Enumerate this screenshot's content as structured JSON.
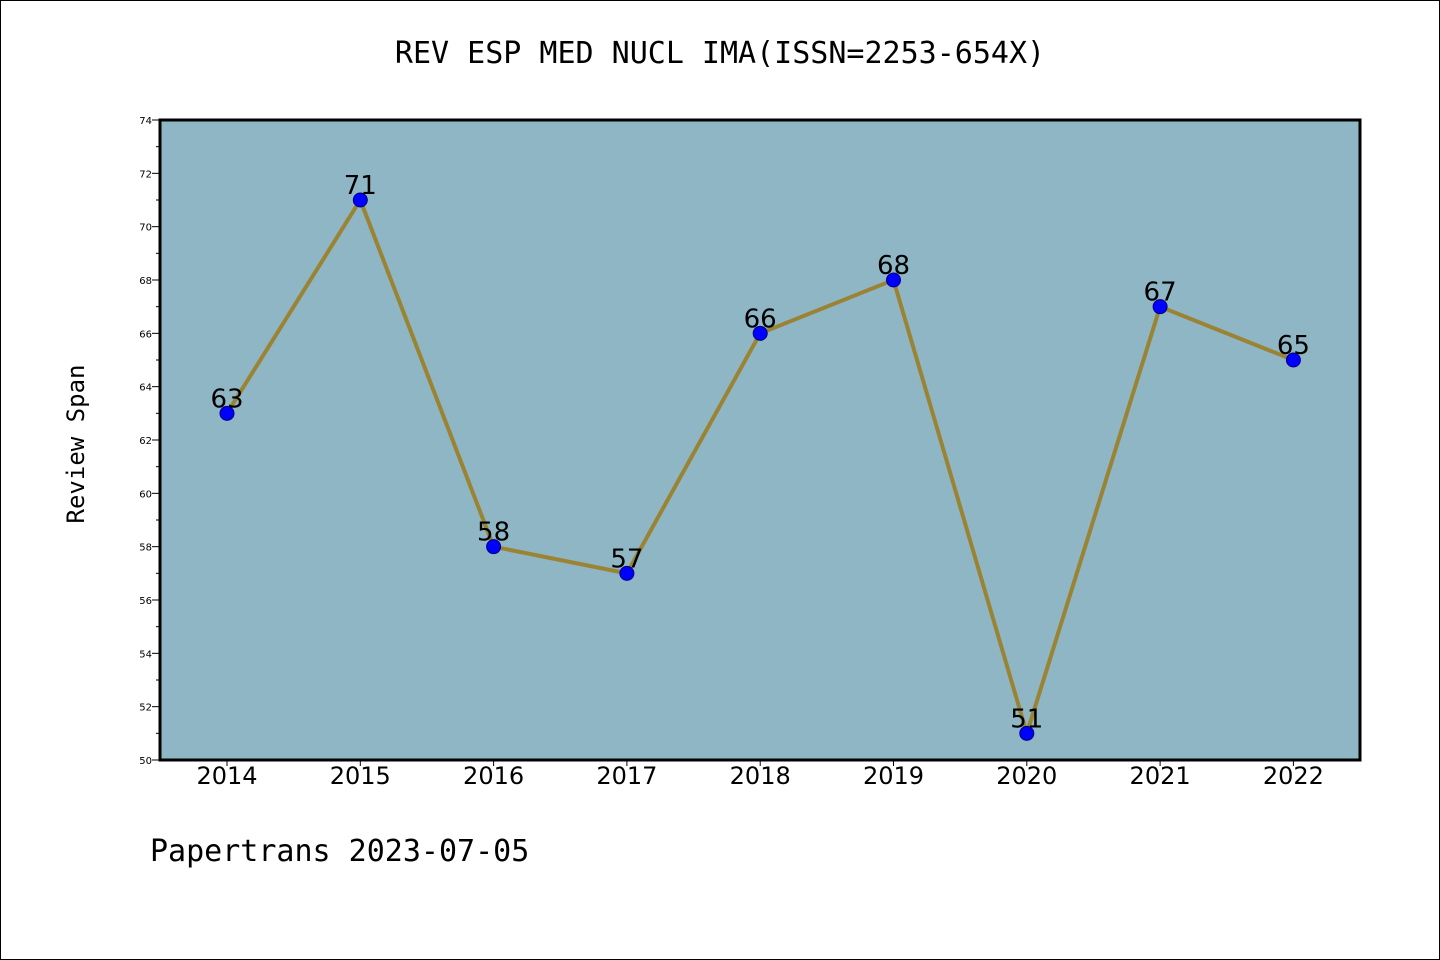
{
  "chart_data": {
    "type": "line",
    "title": "REV ESP MED NUCL IMA(ISSN=2253-654X)",
    "xlabel": "",
    "ylabel": "Review Span",
    "categories": [
      "2014",
      "2015",
      "2016",
      "2017",
      "2018",
      "2019",
      "2020",
      "2021",
      "2022"
    ],
    "values": [
      63,
      71,
      58,
      57,
      66,
      68,
      51,
      67,
      65
    ],
    "ylim": [
      50,
      74
    ],
    "yticks": [
      50,
      52,
      54,
      56,
      58,
      60,
      62,
      64,
      66,
      68,
      70,
      72,
      74
    ],
    "grid": false,
    "colors": {
      "plot_background": "#8fb6c4",
      "line": "#9a8434",
      "marker_fill": "#0000ff",
      "marker_edge": "#000080",
      "axes": "#000000"
    }
  },
  "footer": {
    "text": "Papertrans 2023-07-05"
  }
}
